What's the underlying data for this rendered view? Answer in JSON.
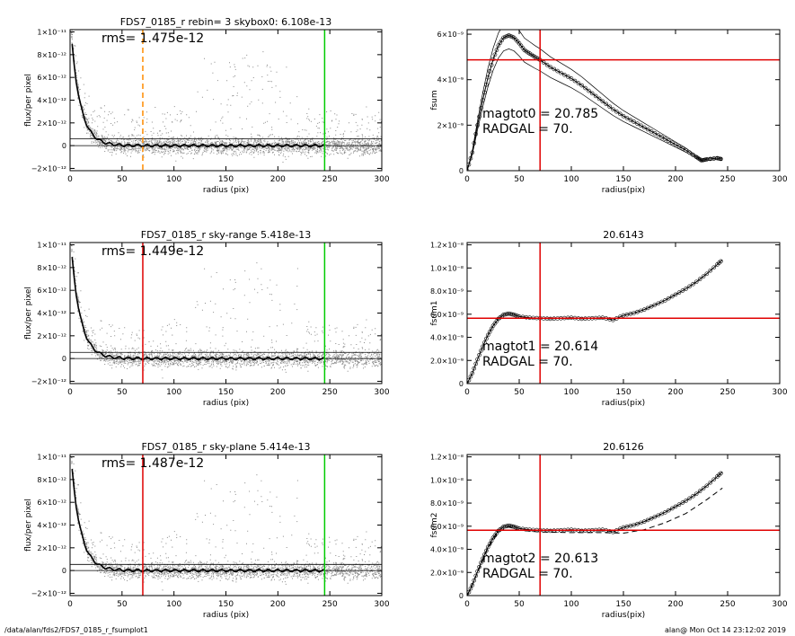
{
  "footer": {
    "path": "/data/alan/fds2/FDS7_0185_r_fsumplot1",
    "stamp": "alan@  Mon Oct 14 23:12:02 2019"
  },
  "chart_data": [
    {
      "id": "left-1",
      "type": "scatter",
      "title": "FDS7_0185_r rebin= 3    skybox0:  6.108e-13",
      "xlabel": "radius (pix)",
      "ylabel": "flux/per pixel",
      "xlim": [
        0,
        300
      ],
      "ylim": [
        -2.2e-12,
        1.02e-11
      ],
      "xticks": [
        "0",
        "50",
        "100",
        "150",
        "200",
        "250",
        "300"
      ],
      "yticks": [
        {
          "v": 1e-11,
          "label": "1×10⁻¹¹"
        },
        {
          "v": 8e-12,
          "label": "8×10⁻¹²"
        },
        {
          "v": 6e-12,
          "label": "6×10⁻¹²"
        },
        {
          "v": 4e-12,
          "label": "4×10⁻¹²"
        },
        {
          "v": 2e-12,
          "label": "2×10⁻¹²"
        },
        {
          "v": 0,
          "label": "0"
        },
        {
          "v": -2e-12,
          "label": "−2×10⁻¹²"
        }
      ],
      "annotation": "rms= 1.475e-12",
      "hlines": [
        6.108e-13,
        0
      ],
      "vlines": [
        {
          "x": 70,
          "color": "#ff8c00",
          "dash": true
        },
        {
          "x": 245,
          "color": "#00cc00",
          "dash": false
        }
      ]
    },
    {
      "id": "right-1",
      "type": "line",
      "title": "",
      "xlabel": "radius(pix)",
      "ylabel": "fsum",
      "xlim": [
        0,
        300
      ],
      "ylim": [
        0,
        6.2e-09
      ],
      "xticks": [
        "0",
        "50",
        "100",
        "150",
        "200",
        "250",
        "300"
      ],
      "yticks": [
        {
          "v": 0,
          "label": "0"
        },
        {
          "v": 2e-09,
          "label": "2×10⁻⁹"
        },
        {
          "v": 4e-09,
          "label": "4×10⁻⁹"
        },
        {
          "v": 6e-09,
          "label": "6×10⁻⁹"
        }
      ],
      "annotations": [
        "magtot0 =  20.785",
        "RADGAL =     70."
      ],
      "crosshair": {
        "x": 70,
        "y": 4.87e-09
      },
      "series": [
        {
          "values": [
            [
              0,
              0
            ],
            [
              5,
              8e-10
            ],
            [
              10,
              2e-09
            ],
            [
              15,
              3.1e-09
            ],
            [
              20,
              4.1e-09
            ],
            [
              25,
              4.9e-09
            ],
            [
              30,
              5.5e-09
            ],
            [
              35,
              5.85e-09
            ],
            [
              40,
              5.95e-09
            ],
            [
              45,
              5.85e-09
            ],
            [
              50,
              5.6e-09
            ],
            [
              55,
              5.3e-09
            ],
            [
              60,
              5.15e-09
            ],
            [
              65,
              5e-09
            ],
            [
              70,
              4.87e-09
            ],
            [
              80,
              4.55e-09
            ],
            [
              90,
              4.3e-09
            ],
            [
              100,
              4.05e-09
            ],
            [
              110,
              3.75e-09
            ],
            [
              120,
              3.4e-09
            ],
            [
              130,
              3.05e-09
            ],
            [
              140,
              2.7e-09
            ],
            [
              150,
              2.4e-09
            ],
            [
              160,
              2.15e-09
            ],
            [
              170,
              1.9e-09
            ],
            [
              180,
              1.65e-09
            ],
            [
              190,
              1.4e-09
            ],
            [
              200,
              1.15e-09
            ],
            [
              210,
              9e-10
            ],
            [
              220,
              6e-10
            ],
            [
              225,
              4.5e-10
            ],
            [
              230,
              5e-10
            ],
            [
              240,
              5.5e-10
            ],
            [
              245,
              5e-10
            ]
          ]
        }
      ]
    },
    {
      "id": "left-2",
      "type": "scatter",
      "title": "FDS7_0185_r sky-range  5.418e-13",
      "xlabel": "radius (pix)",
      "ylabel": "flux/per pixel",
      "xlim": [
        0,
        300
      ],
      "ylim": [
        -2.2e-12,
        1.02e-11
      ],
      "xticks": [
        "0",
        "50",
        "100",
        "150",
        "200",
        "250",
        "300"
      ],
      "yticks": [
        {
          "v": 1e-11,
          "label": "1×10⁻¹¹"
        },
        {
          "v": 8e-12,
          "label": "8×10⁻¹²"
        },
        {
          "v": 6e-12,
          "label": "6×10⁻¹²"
        },
        {
          "v": 4e-12,
          "label": "4×10⁻¹²"
        },
        {
          "v": 2e-12,
          "label": "2×10⁻¹²"
        },
        {
          "v": 0,
          "label": "0"
        },
        {
          "v": -2e-12,
          "label": "−2×10⁻¹²"
        }
      ],
      "annotation": "rms= 1.449e-12",
      "hlines": [
        5.418e-13,
        0
      ],
      "vlines": [
        {
          "x": 70,
          "color": "#e00000",
          "dash": false
        },
        {
          "x": 245,
          "color": "#00cc00",
          "dash": false
        }
      ]
    },
    {
      "id": "right-2",
      "type": "line",
      "title": "20.6143",
      "xlabel": "radius(pix)",
      "ylabel": "fsum1",
      "xlim": [
        0,
        300
      ],
      "ylim": [
        0,
        1.22e-08
      ],
      "xticks": [
        "0",
        "50",
        "100",
        "150",
        "200",
        "250",
        "300"
      ],
      "yticks": [
        {
          "v": 0,
          "label": "0"
        },
        {
          "v": 2e-09,
          "label": "2.0×10⁻⁹"
        },
        {
          "v": 4e-09,
          "label": "4.0×10⁻⁹"
        },
        {
          "v": 6e-09,
          "label": "6.0×10⁻⁹"
        },
        {
          "v": 8e-09,
          "label": "8.0×10⁻⁹"
        },
        {
          "v": 1e-08,
          "label": "1.0×10⁻⁸"
        },
        {
          "v": 1.2e-08,
          "label": "1.2×10⁻⁸"
        }
      ],
      "annotations": [
        "magtot1 =  20.614",
        "RADGAL =     70."
      ],
      "crosshair": {
        "x": 70,
        "y": 5.65e-09
      },
      "series": [
        {
          "values": [
            [
              0,
              0
            ],
            [
              5,
              9e-10
            ],
            [
              10,
              2.1e-09
            ],
            [
              15,
              3.2e-09
            ],
            [
              20,
              4.2e-09
            ],
            [
              25,
              5e-09
            ],
            [
              30,
              5.6e-09
            ],
            [
              35,
              5.95e-09
            ],
            [
              40,
              6.05e-09
            ],
            [
              45,
              5.95e-09
            ],
            [
              50,
              5.8e-09
            ],
            [
              60,
              5.7e-09
            ],
            [
              70,
              5.65e-09
            ],
            [
              80,
              5.6e-09
            ],
            [
              90,
              5.65e-09
            ],
            [
              100,
              5.7e-09
            ],
            [
              110,
              5.6e-09
            ],
            [
              120,
              5.65e-09
            ],
            [
              130,
              5.7e-09
            ],
            [
              140,
              5.5e-09
            ],
            [
              150,
              5.9e-09
            ],
            [
              160,
              6.1e-09
            ],
            [
              170,
              6.4e-09
            ],
            [
              180,
              6.8e-09
            ],
            [
              190,
              7.2e-09
            ],
            [
              200,
              7.7e-09
            ],
            [
              210,
              8.2e-09
            ],
            [
              220,
              8.8e-09
            ],
            [
              230,
              9.5e-09
            ],
            [
              240,
              1.03e-08
            ],
            [
              245,
              1.07e-08
            ]
          ]
        }
      ]
    },
    {
      "id": "left-3",
      "type": "scatter",
      "title": "FDS7_0185_r sky-plane  5.414e-13",
      "xlabel": "radius (pix)",
      "ylabel": "flux/per pixel",
      "xlim": [
        0,
        300
      ],
      "ylim": [
        -2.2e-12,
        1.02e-11
      ],
      "xticks": [
        "0",
        "50",
        "100",
        "150",
        "200",
        "250",
        "300"
      ],
      "yticks": [
        {
          "v": 1e-11,
          "label": "1×10⁻¹¹"
        },
        {
          "v": 8e-12,
          "label": "8×10⁻¹²"
        },
        {
          "v": 6e-12,
          "label": "6×10⁻¹²"
        },
        {
          "v": 4e-12,
          "label": "4×10⁻¹²"
        },
        {
          "v": 2e-12,
          "label": "2×10⁻¹²"
        },
        {
          "v": 0,
          "label": "0"
        },
        {
          "v": -2e-12,
          "label": "−2×10⁻¹²"
        }
      ],
      "annotation": "rms= 1.487e-12",
      "hlines": [
        5.414e-13,
        0
      ],
      "vlines": [
        {
          "x": 70,
          "color": "#e00000",
          "dash": false
        },
        {
          "x": 245,
          "color": "#00cc00",
          "dash": false
        }
      ]
    },
    {
      "id": "right-3",
      "type": "line",
      "title": "20.6126",
      "xlabel": "radius(pix)",
      "ylabel": "fsum2",
      "xlim": [
        0,
        300
      ],
      "ylim": [
        0,
        1.22e-08
      ],
      "xticks": [
        "0",
        "50",
        "100",
        "150",
        "200",
        "250",
        "300"
      ],
      "yticks": [
        {
          "v": 0,
          "label": "0"
        },
        {
          "v": 2e-09,
          "label": "2.0×10⁻⁹"
        },
        {
          "v": 4e-09,
          "label": "4.0×10⁻⁹"
        },
        {
          "v": 6e-09,
          "label": "6.0×10⁻⁹"
        },
        {
          "v": 8e-09,
          "label": "8.0×10⁻⁹"
        },
        {
          "v": 1e-08,
          "label": "1.0×10⁻⁸"
        },
        {
          "v": 1.2e-08,
          "label": "1.2×10⁻⁸"
        }
      ],
      "annotations": [
        "magtot2 =  20.613",
        "RADGAL =     70."
      ],
      "crosshair": {
        "x": 70,
        "y": 5.65e-09
      },
      "series": [
        {
          "values": [
            [
              0,
              0
            ],
            [
              5,
              9e-10
            ],
            [
              10,
              2.1e-09
            ],
            [
              15,
              3.2e-09
            ],
            [
              20,
              4.2e-09
            ],
            [
              25,
              5e-09
            ],
            [
              30,
              5.6e-09
            ],
            [
              35,
              5.95e-09
            ],
            [
              40,
              6.05e-09
            ],
            [
              45,
              5.95e-09
            ],
            [
              50,
              5.8e-09
            ],
            [
              60,
              5.7e-09
            ],
            [
              70,
              5.65e-09
            ],
            [
              80,
              5.6e-09
            ],
            [
              90,
              5.65e-09
            ],
            [
              100,
              5.7e-09
            ],
            [
              110,
              5.6e-09
            ],
            [
              120,
              5.65e-09
            ],
            [
              130,
              5.7e-09
            ],
            [
              140,
              5.5e-09
            ],
            [
              150,
              5.9e-09
            ],
            [
              160,
              6.1e-09
            ],
            [
              170,
              6.4e-09
            ],
            [
              180,
              6.8e-09
            ],
            [
              190,
              7.2e-09
            ],
            [
              200,
              7.7e-09
            ],
            [
              210,
              8.2e-09
            ],
            [
              220,
              8.8e-09
            ],
            [
              230,
              9.5e-09
            ],
            [
              240,
              1.03e-08
            ],
            [
              245,
              1.07e-08
            ]
          ]
        },
        {
          "dashed": true,
          "values": [
            [
              0,
              0
            ],
            [
              10,
              2e-09
            ],
            [
              20,
              4.1e-09
            ],
            [
              30,
              5.5e-09
            ],
            [
              40,
              5.95e-09
            ],
            [
              50,
              5.65e-09
            ],
            [
              70,
              5.5e-09
            ],
            [
              100,
              5.45e-09
            ],
            [
              130,
              5.45e-09
            ],
            [
              150,
              5.4e-09
            ],
            [
              170,
              5.7e-09
            ],
            [
              190,
              6.3e-09
            ],
            [
              210,
              7.1e-09
            ],
            [
              230,
              8.3e-09
            ],
            [
              245,
              9.3e-09
            ]
          ]
        }
      ]
    }
  ]
}
